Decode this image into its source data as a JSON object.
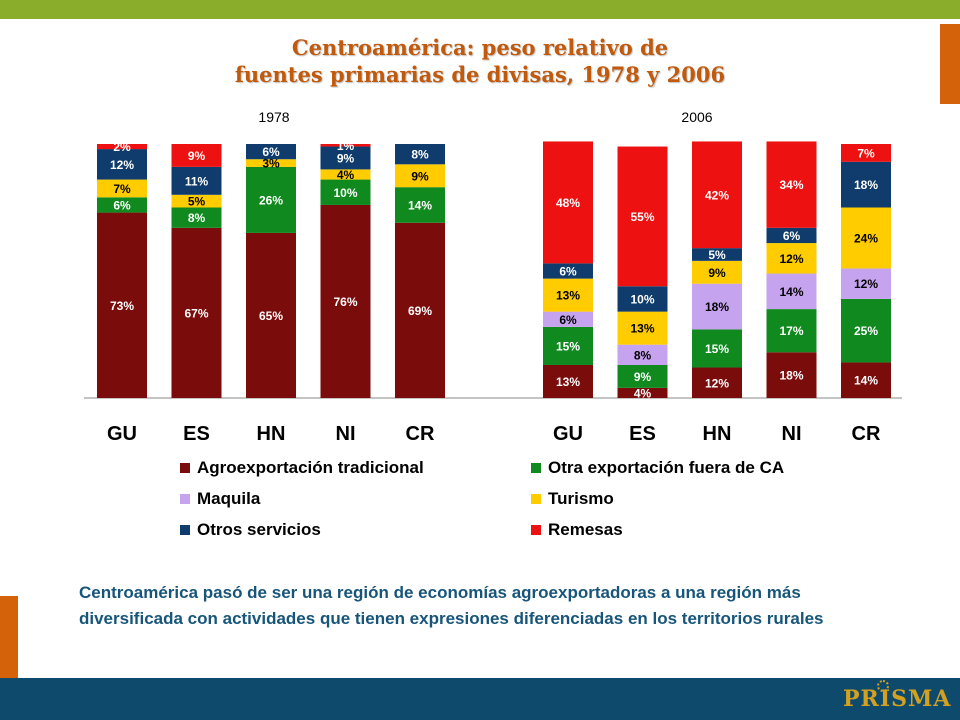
{
  "slide": {
    "title_line1": "Centroamérica: peso relativo de",
    "title_line2": "fuentes primarias de divisas, 1978 y 2006",
    "caption": "Centroamérica pasó de ser una región de economías agroexportadoras a una región más diversificada con actividades que tienen expresiones diferenciadas en los territorios rurales",
    "logo_text": "PRISMA"
  },
  "colors": {
    "topbar": "#8aae2c",
    "accent": "#d4620b",
    "bottombar": "#0e4a6c",
    "title": "#c25a0e",
    "caption": "#17557a"
  },
  "chart_data": [
    {
      "type": "bar",
      "stacked": true,
      "title": "1978",
      "categories": [
        "GU",
        "ES",
        "HN",
        "NI",
        "CR"
      ],
      "ylim": [
        0,
        100
      ],
      "series": [
        {
          "name": "Agroexportación tradicional",
          "color": "#7b0c0c",
          "values": [
            73,
            67,
            65,
            76,
            69
          ],
          "labels": [
            "73%",
            "67%",
            "65%",
            "76%",
            "69%"
          ]
        },
        {
          "name": "Otra exportación fuera de CA",
          "color": "#108a1f",
          "values": [
            6,
            8,
            26,
            10,
            14
          ],
          "labels": [
            "6%",
            "8%",
            "26%",
            "10%",
            "14%"
          ]
        },
        {
          "name": "Maquila",
          "color": "#c6a3ee",
          "values": [
            0,
            0,
            0,
            0,
            0
          ],
          "labels": [
            "",
            "",
            "",
            "",
            ""
          ]
        },
        {
          "name": "Turismo",
          "color": "#ffcc00",
          "values": [
            7,
            5,
            3,
            4,
            9
          ],
          "labels": [
            "7%",
            "5%",
            "3%",
            "4%",
            "9%"
          ]
        },
        {
          "name": "Otros servicios",
          "color": "#0f3c6c",
          "values": [
            12,
            11,
            6,
            9,
            8
          ],
          "labels": [
            "12%",
            "11%",
            "6%",
            "9%",
            "8%"
          ]
        },
        {
          "name": "Remesas",
          "color": "#ee1111",
          "values": [
            2,
            9,
            0,
            1,
            0
          ],
          "labels": [
            "2%",
            "9%",
            "",
            "1%",
            ""
          ]
        }
      ]
    },
    {
      "type": "bar",
      "stacked": true,
      "title": "2006",
      "categories": [
        "GU",
        "ES",
        "HN",
        "NI",
        "CR"
      ],
      "ylim": [
        0,
        100
      ],
      "series": [
        {
          "name": "Agroexportación tradicional",
          "color": "#7b0c0c",
          "values": [
            13,
            4,
            12,
            18,
            14
          ],
          "labels": [
            "13%",
            "4%",
            "12%",
            "18%",
            "14%"
          ]
        },
        {
          "name": "Otra exportación fuera de CA",
          "color": "#108a1f",
          "values": [
            15,
            9,
            15,
            17,
            25
          ],
          "labels": [
            "15%",
            "9%",
            "15%",
            "17%",
            "25%"
          ]
        },
        {
          "name": "Maquila",
          "color": "#c6a3ee",
          "values": [
            6,
            8,
            18,
            14,
            12
          ],
          "labels": [
            "6%",
            "8%",
            "18%",
            "14%",
            "12%"
          ]
        },
        {
          "name": "Turismo",
          "color": "#ffcc00",
          "values": [
            13,
            13,
            9,
            12,
            24
          ],
          "labels": [
            "13%",
            "13%",
            "9%",
            "12%",
            "24%"
          ]
        },
        {
          "name": "Otros servicios",
          "color": "#0f3c6c",
          "values": [
            6,
            10,
            5,
            6,
            18
          ],
          "labels": [
            "6%",
            "10%",
            "5%",
            "6%",
            "18%"
          ]
        },
        {
          "name": "Remesas",
          "color": "#ee1111",
          "values": [
            48,
            55,
            42,
            34,
            7
          ],
          "labels": [
            "48%",
            "55%",
            "42%",
            "34%",
            "7%"
          ]
        }
      ]
    }
  ],
  "legend": {
    "placement": "bottom",
    "items": [
      {
        "label": "Agroexportación tradicional",
        "color": "#7b0c0c"
      },
      {
        "label": "Otra exportación fuera de CA",
        "color": "#108a1f"
      },
      {
        "label": "Maquila",
        "color": "#c6a3ee"
      },
      {
        "label": "Turismo",
        "color": "#ffcc00"
      },
      {
        "label": "Otros servicios",
        "color": "#0f3c6c"
      },
      {
        "label": "Remesas",
        "color": "#ee1111"
      }
    ]
  }
}
